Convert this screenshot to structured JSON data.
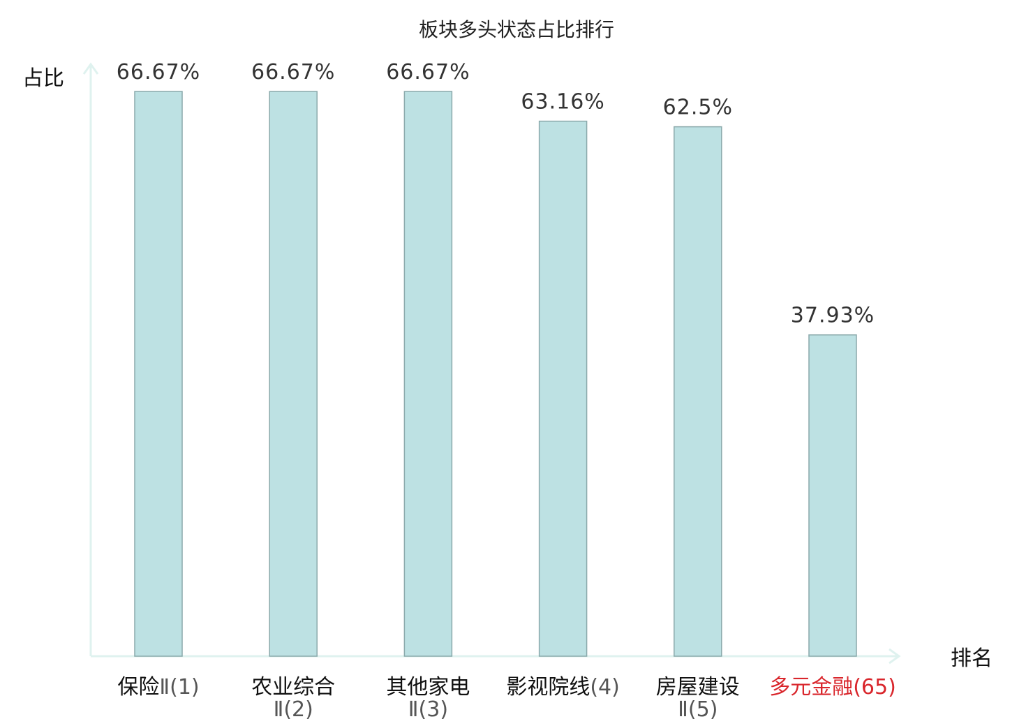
{
  "chart_data": {
    "type": "bar",
    "title": "板块多头状态占比排行",
    "ylabel": "占比",
    "xlabel": "排名",
    "ylim": [
      0,
      70
    ],
    "grid": false,
    "legend": "none",
    "categories": [
      {
        "name": "保险",
        "rank": "Ⅱ(1)"
      },
      {
        "name": "农业综合",
        "rank": "Ⅱ(2)"
      },
      {
        "name": "其他家电",
        "rank": "Ⅱ(3)"
      },
      {
        "name": "影视院线",
        "rank": "(4)"
      },
      {
        "name": "房屋建设",
        "rank": "Ⅱ(5)"
      },
      {
        "name": "多元金融",
        "rank": "(65)"
      }
    ],
    "values": [
      66.67,
      66.67,
      66.67,
      63.16,
      62.5,
      37.93
    ],
    "value_labels": [
      "66.67%",
      "66.67%",
      "66.67%",
      "63.16%",
      "62.5%",
      "37.93%"
    ],
    "highlight_index": 5,
    "colors": {
      "bar_fill": "#bde1e3",
      "bar_stroke": "#8aa9ab",
      "axis": "#dff2ef",
      "highlight_text": "#d9262c"
    }
  }
}
